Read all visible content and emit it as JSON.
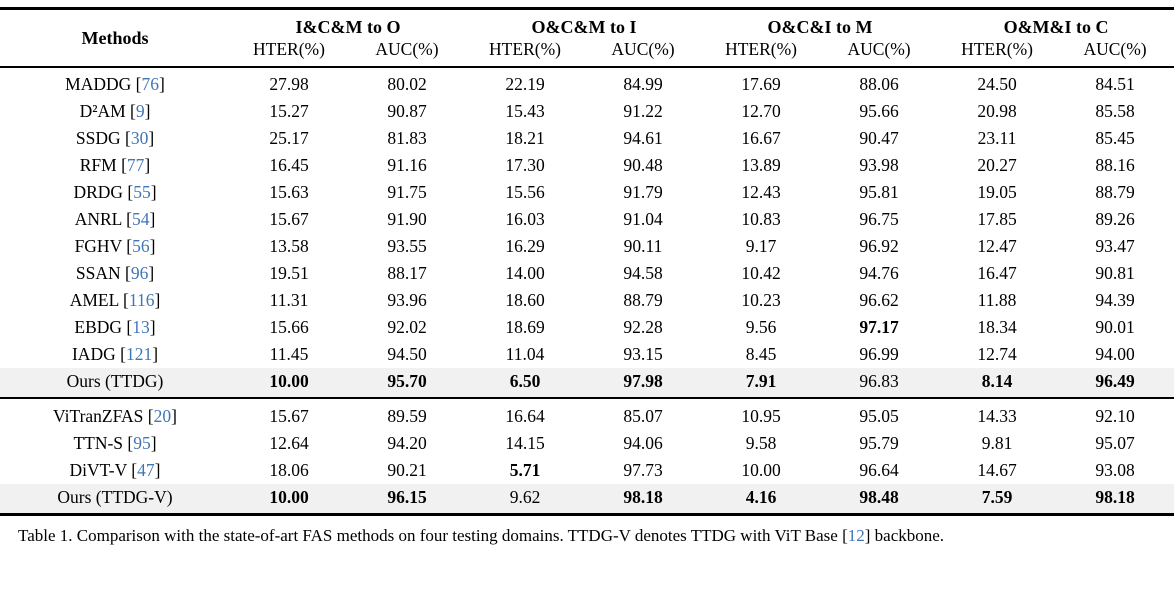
{
  "table": {
    "methods_header": "Methods",
    "groups": [
      {
        "label": "I&C&M to O"
      },
      {
        "label": "O&C&M to I"
      },
      {
        "label": "O&C&I to M"
      },
      {
        "label": "O&M&I to C"
      }
    ],
    "sub_headers": [
      "HTER(%)",
      "AUC(%)",
      "HTER(%)",
      "AUC(%)",
      "HTER(%)",
      "AUC(%)",
      "HTER(%)",
      "AUC(%)"
    ],
    "sections": [
      {
        "rows": [
          {
            "method": "MADDG",
            "cite": "76",
            "highlight": false,
            "bold": [],
            "values": [
              "27.98",
              "80.02",
              "22.19",
              "84.99",
              "17.69",
              "88.06",
              "24.50",
              "84.51"
            ]
          },
          {
            "method": "D²AM",
            "cite": "9",
            "highlight": false,
            "bold": [],
            "values": [
              "15.27",
              "90.87",
              "15.43",
              "91.22",
              "12.70",
              "95.66",
              "20.98",
              "85.58"
            ]
          },
          {
            "method": "SSDG",
            "cite": "30",
            "highlight": false,
            "bold": [],
            "values": [
              "25.17",
              "81.83",
              "18.21",
              "94.61",
              "16.67",
              "90.47",
              "23.11",
              "85.45"
            ]
          },
          {
            "method": "RFM",
            "cite": "77",
            "highlight": false,
            "bold": [],
            "values": [
              "16.45",
              "91.16",
              "17.30",
              "90.48",
              "13.89",
              "93.98",
              "20.27",
              "88.16"
            ]
          },
          {
            "method": "DRDG",
            "cite": "55",
            "highlight": false,
            "bold": [],
            "values": [
              "15.63",
              "91.75",
              "15.56",
              "91.79",
              "12.43",
              "95.81",
              "19.05",
              "88.79"
            ]
          },
          {
            "method": "ANRL",
            "cite": "54",
            "highlight": false,
            "bold": [],
            "values": [
              "15.67",
              "91.90",
              "16.03",
              "91.04",
              "10.83",
              "96.75",
              "17.85",
              "89.26"
            ]
          },
          {
            "method": "FGHV",
            "cite": "56",
            "highlight": false,
            "bold": [],
            "values": [
              "13.58",
              "93.55",
              "16.29",
              "90.11",
              "9.17",
              "96.92",
              "12.47",
              "93.47"
            ]
          },
          {
            "method": "SSAN",
            "cite": "96",
            "highlight": false,
            "bold": [],
            "values": [
              "19.51",
              "88.17",
              "14.00",
              "94.58",
              "10.42",
              "94.76",
              "16.47",
              "90.81"
            ]
          },
          {
            "method": "AMEL",
            "cite": "116",
            "highlight": false,
            "bold": [],
            "values": [
              "11.31",
              "93.96",
              "18.60",
              "88.79",
              "10.23",
              "96.62",
              "11.88",
              "94.39"
            ]
          },
          {
            "method": "EBDG",
            "cite": "13",
            "highlight": false,
            "bold": [
              5
            ],
            "values": [
              "15.66",
              "92.02",
              "18.69",
              "92.28",
              "9.56",
              "97.17",
              "18.34",
              "90.01"
            ]
          },
          {
            "method": "IADG",
            "cite": "121",
            "highlight": false,
            "bold": [],
            "values": [
              "11.45",
              "94.50",
              "11.04",
              "93.15",
              "8.45",
              "96.99",
              "12.74",
              "94.00"
            ]
          },
          {
            "method": "Ours (TTDG)",
            "cite": null,
            "highlight": true,
            "bold": [
              0,
              1,
              2,
              3,
              4,
              6,
              7
            ],
            "values": [
              "10.00",
              "95.70",
              "6.50",
              "97.98",
              "7.91",
              "96.83",
              "8.14",
              "96.49"
            ]
          }
        ]
      },
      {
        "rows": [
          {
            "method": "ViTranZFAS",
            "cite": "20",
            "highlight": false,
            "bold": [],
            "values": [
              "15.67",
              "89.59",
              "16.64",
              "85.07",
              "10.95",
              "95.05",
              "14.33",
              "92.10"
            ]
          },
          {
            "method": "TTN-S",
            "cite": "95",
            "highlight": false,
            "bold": [],
            "values": [
              "12.64",
              "94.20",
              "14.15",
              "94.06",
              "9.58",
              "95.79",
              "9.81",
              "95.07"
            ]
          },
          {
            "method": "DiVT-V",
            "cite": "47",
            "highlight": false,
            "bold": [
              2
            ],
            "values": [
              "18.06",
              "90.21",
              "5.71",
              "97.73",
              "10.00",
              "96.64",
              "14.67",
              "93.08"
            ]
          },
          {
            "method": "Ours (TTDG-V)",
            "cite": null,
            "highlight": true,
            "bold": [
              0,
              1,
              3,
              4,
              5,
              6,
              7
            ],
            "values": [
              "10.00",
              "96.15",
              "9.62",
              "98.18",
              "4.16",
              "98.48",
              "7.59",
              "98.18"
            ]
          }
        ]
      }
    ]
  },
  "caption": {
    "prefix": "Table 1. Comparison with the state-of-art FAS methods on four testing domains. TTDG-V denotes TTDG with ViT Base [",
    "cite": "12",
    "suffix": "] backbone."
  },
  "colors": {
    "citation": "#4076b9",
    "highlight": "#f1f1f1"
  }
}
